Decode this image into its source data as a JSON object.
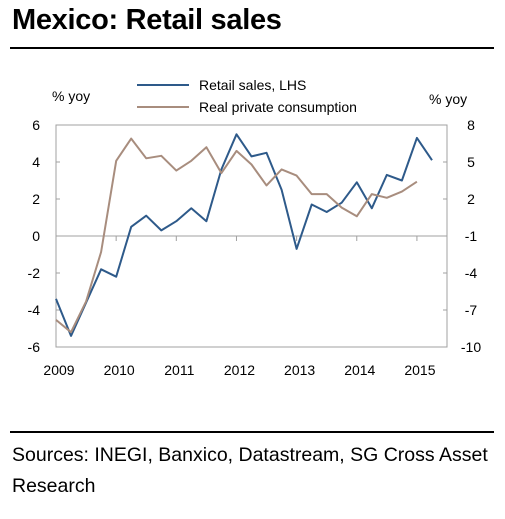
{
  "title": "Mexico: Retail sales",
  "source": "Sources: INEGI, Banxico, Datastream, SG Cross Asset Research",
  "chart_data": {
    "type": "line",
    "left_unit": "% yoy",
    "right_unit": "% yoy",
    "x_ticks": [
      "2009",
      "2010",
      "2011",
      "2012",
      "2013",
      "2014",
      "2015"
    ],
    "left_ticks": [
      "6",
      "4",
      "2",
      "0",
      "-2",
      "-4",
      "-6"
    ],
    "right_ticks": [
      "8",
      "5",
      "2",
      "-1",
      "-4",
      "-7",
      "-10"
    ],
    "left_ylim": [
      -6,
      6
    ],
    "right_ylim": [
      -10,
      8
    ],
    "xlim": [
      2009,
      2015.5
    ],
    "legend_position": "top",
    "series": [
      {
        "name": "Retail sales, LHS",
        "axis": "left",
        "color": "#2e5a8a",
        "x": [
          2009.0,
          2009.25,
          2009.5,
          2009.75,
          2010.0,
          2010.25,
          2010.5,
          2010.75,
          2011.0,
          2011.25,
          2011.5,
          2011.75,
          2012.0,
          2012.25,
          2012.5,
          2012.75,
          2013.0,
          2013.25,
          2013.5,
          2013.75,
          2014.0,
          2014.25,
          2014.5,
          2014.75,
          2015.0,
          2015.25
        ],
        "values": [
          -3.4,
          -5.4,
          -3.6,
          -1.8,
          -2.2,
          0.5,
          1.1,
          0.3,
          0.8,
          1.5,
          0.8,
          3.6,
          5.5,
          4.3,
          4.5,
          2.5,
          -0.7,
          1.7,
          1.3,
          1.8,
          2.9,
          1.5,
          3.3,
          3.0,
          5.3,
          4.1
        ]
      },
      {
        "name": "Real private consumption",
        "axis": "right",
        "color": "#a88d7e",
        "x": [
          2009.0,
          2009.25,
          2009.5,
          2009.75,
          2010.0,
          2010.25,
          2010.5,
          2010.75,
          2011.0,
          2011.25,
          2011.5,
          2011.75,
          2012.0,
          2012.25,
          2012.5,
          2012.75,
          2013.0,
          2013.25,
          2013.5,
          2013.75,
          2014.0,
          2014.25,
          2014.5,
          2014.75,
          2015.0
        ],
        "values": [
          -7.8,
          -8.8,
          -6.3,
          -2.3,
          5.1,
          6.9,
          5.3,
          5.5,
          4.3,
          5.1,
          6.2,
          4.1,
          5.9,
          4.8,
          3.1,
          4.4,
          3.9,
          2.4,
          2.4,
          1.3,
          0.6,
          2.4,
          2.1,
          2.6,
          3.4
        ]
      }
    ]
  }
}
